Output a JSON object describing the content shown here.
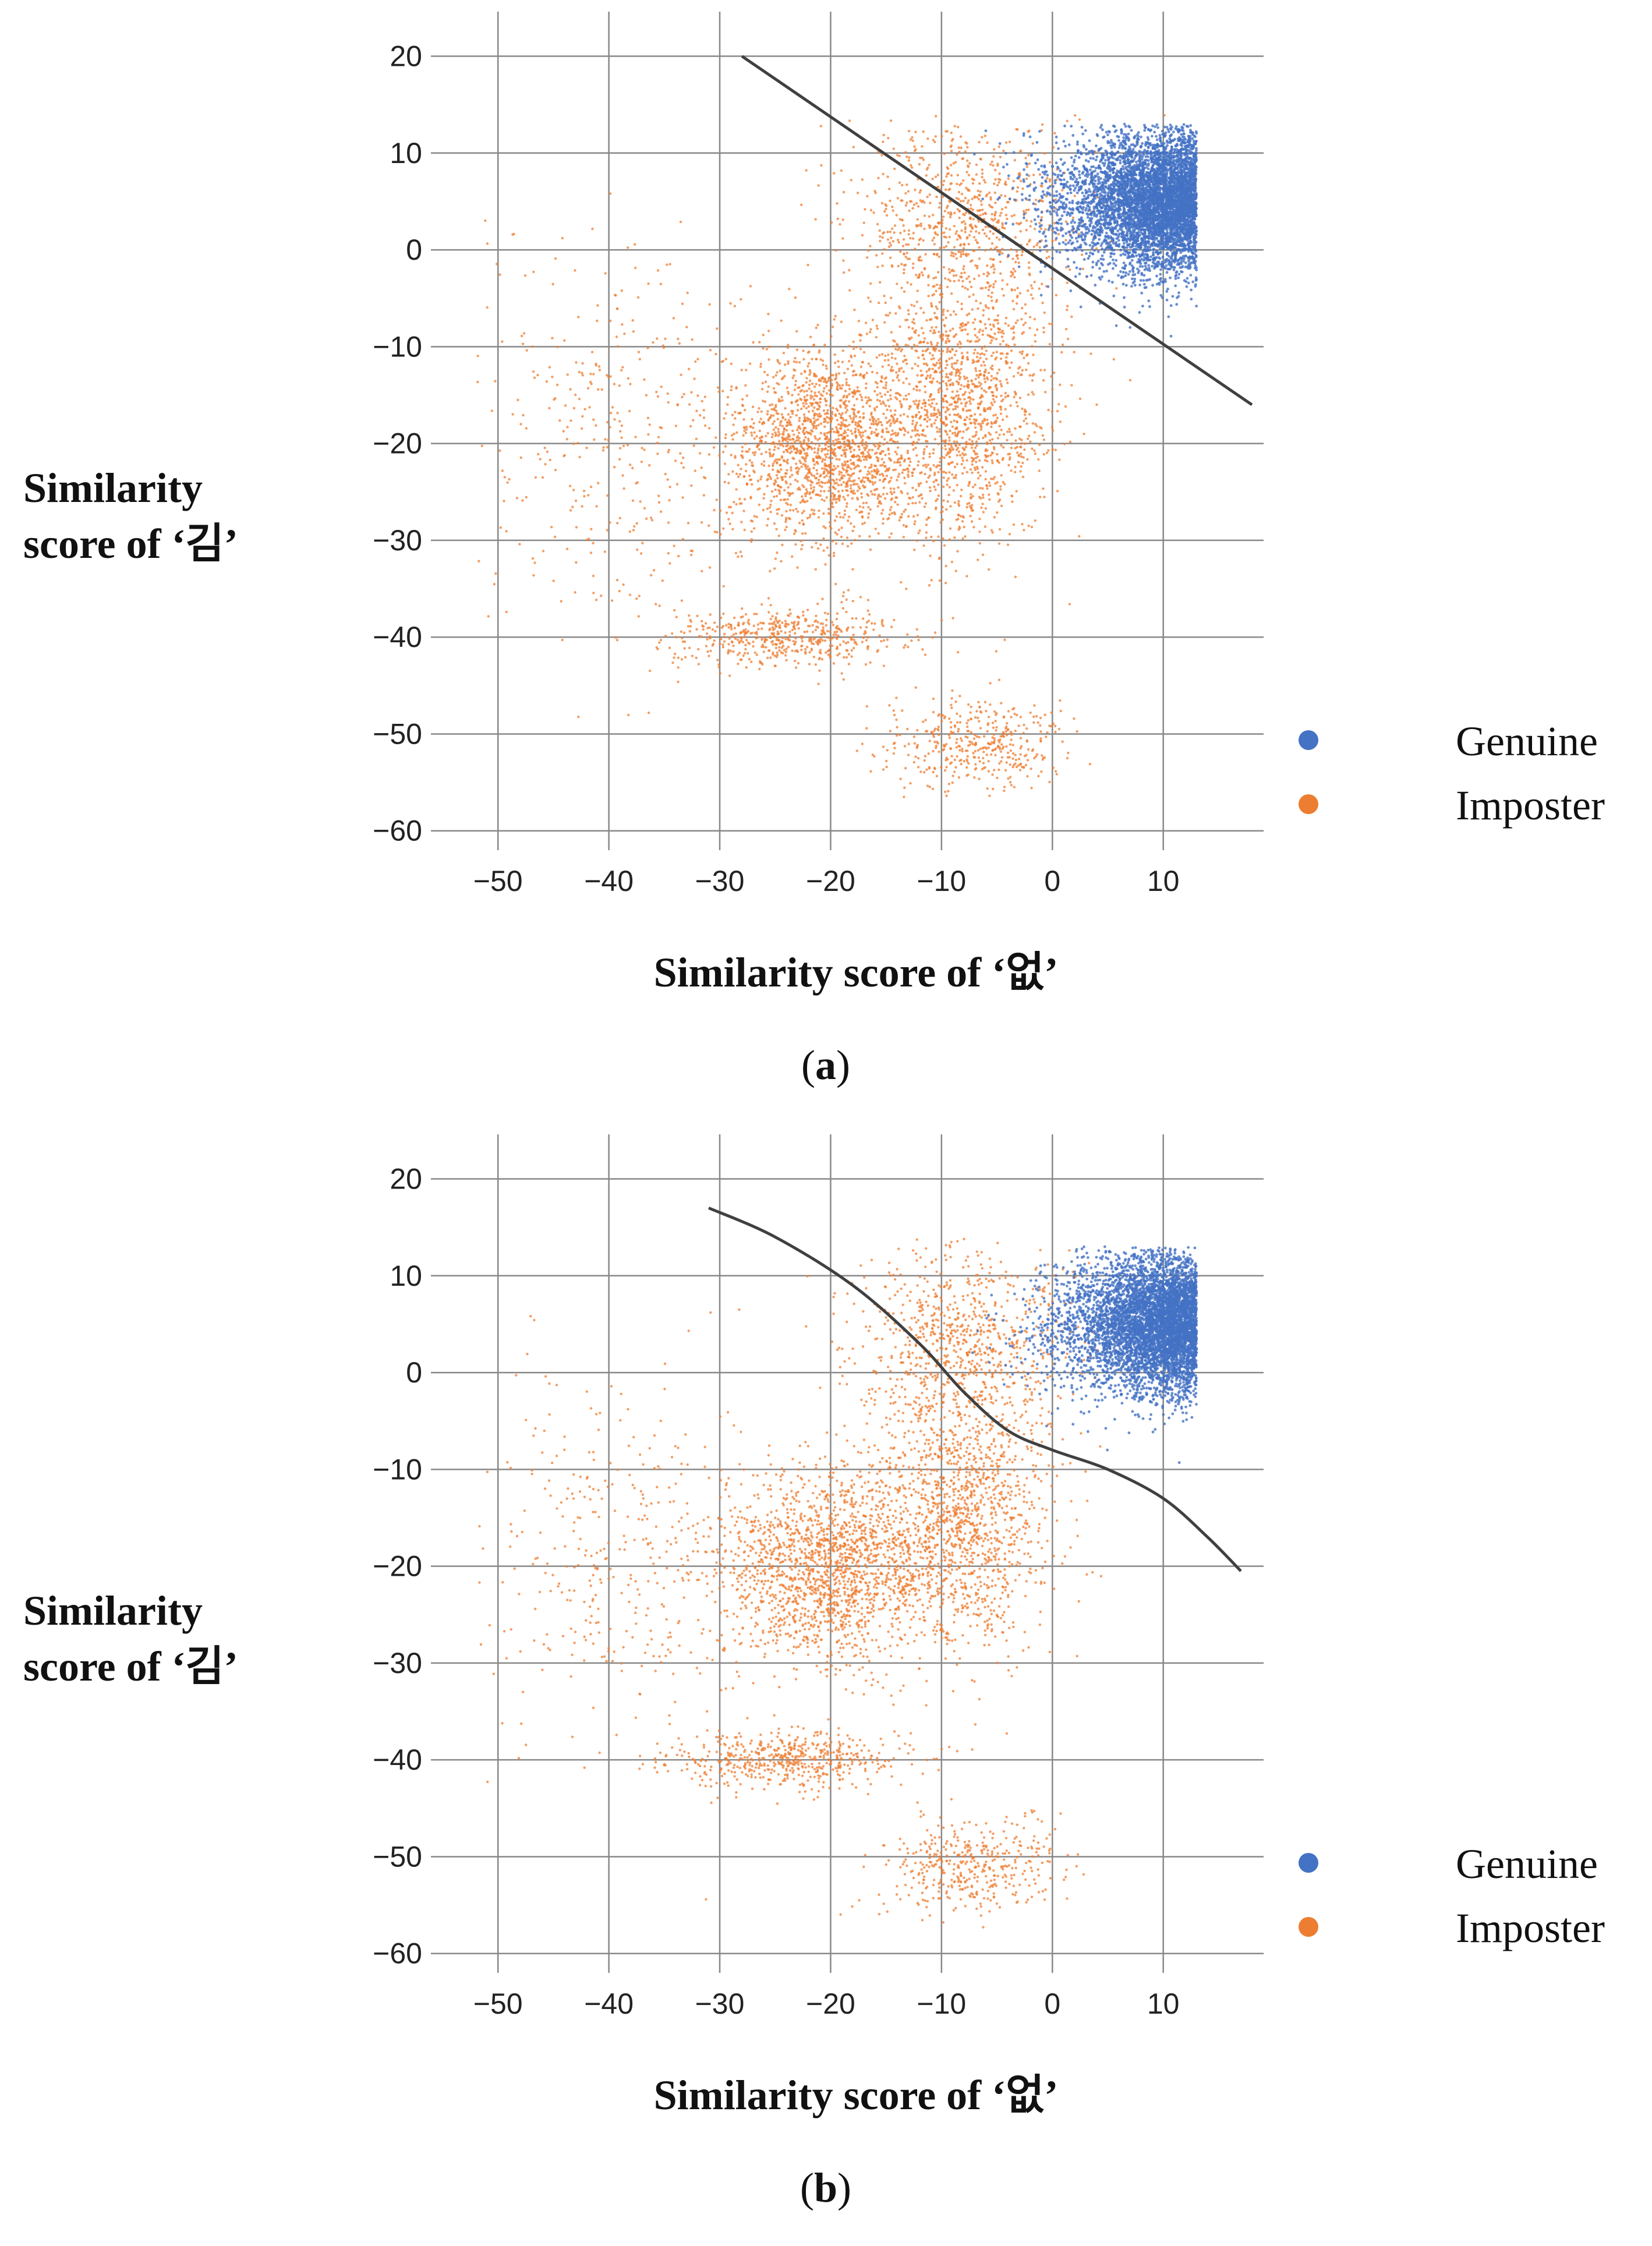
{
  "chart_data": [
    {
      "type": "scatter",
      "panel": "(a)",
      "caption_letter": "a",
      "xlabel": "Similarity score of ‘없’",
      "ylabel": [
        "Similarity",
        "score of ‘김’"
      ],
      "xlim": [
        -55,
        18
      ],
      "ylim": [
        -62,
        24
      ],
      "xticks": [
        -50,
        -40,
        -30,
        -20,
        -10,
        0,
        10
      ],
      "yticks": [
        20,
        10,
        0,
        -10,
        -20,
        -30,
        -40,
        -50,
        -60
      ],
      "xtick_labels": [
        "−50",
        "−40",
        "−30",
        "−20",
        "−10",
        "0",
        "10"
      ],
      "ytick_labels": [
        "20",
        "10",
        "0",
        "−10",
        "−20",
        "−30",
        "−40",
        "−50",
        "−60"
      ],
      "grid": true,
      "legend": "right",
      "series": [
        {
          "name": "Genuine",
          "color": "#4472C4",
          "distribution": {
            "x_center": 4,
            "x_spread": 5.5,
            "x_min": -12,
            "x_max": 13,
            "y_center": 5,
            "y_spread": 3.5,
            "y_min": -10,
            "y_max": 13
          }
        },
        {
          "name": "Imposter",
          "color": "#ED7D31",
          "clusters": [
            {
              "x": -20,
              "y": -20,
              "sx": 5,
              "sy": 5,
              "weight": 0.35
            },
            {
              "x": -8,
              "y": -15,
              "sx": 4,
              "sy": 7,
              "weight": 0.25
            },
            {
              "x": -8,
              "y": 3,
              "sx": 5,
              "sy": 5,
              "weight": 0.15
            },
            {
              "x": -24,
              "y": -40,
              "sx": 5,
              "sy": 1.5,
              "weight": 0.1
            },
            {
              "x": -7,
              "y": -51,
              "sx": 4,
              "sy": 2.5,
              "weight": 0.08
            },
            {
              "x": -40,
              "y": -20,
              "sx": 6,
              "sy": 10,
              "weight": 0.07
            }
          ]
        },
        {
          "name": "decision boundary",
          "kind": "line",
          "color": "#404040",
          "points": [
            [
              -28,
              20
            ],
            [
              18,
              -16
            ]
          ]
        }
      ]
    },
    {
      "type": "scatter",
      "panel": "(b)",
      "caption_letter": "b",
      "xlabel": "Similarity score of ‘없’",
      "ylabel": [
        "Similarity",
        "score of ‘김’"
      ],
      "xlim": [
        -55,
        18
      ],
      "ylim": [
        -62,
        24
      ],
      "xticks": [
        -50,
        -40,
        -30,
        -20,
        -10,
        0,
        10
      ],
      "yticks": [
        20,
        10,
        0,
        -10,
        -20,
        -30,
        -40,
        -50,
        -60
      ],
      "xtick_labels": [
        "−50",
        "−40",
        "−30",
        "−20",
        "−10",
        "0",
        "10"
      ],
      "ytick_labels": [
        "20",
        "10",
        "0",
        "−10",
        "−20",
        "−30",
        "−40",
        "−50",
        "−60"
      ],
      "grid": true,
      "legend": "right",
      "series": [
        {
          "name": "Genuine",
          "color": "#4472C4",
          "distribution": {
            "x_center": 4,
            "x_spread": 5.5,
            "x_min": -12,
            "x_max": 13,
            "y_center": 5,
            "y_spread": 3.5,
            "y_min": -10,
            "y_max": 13
          }
        },
        {
          "name": "Imposter",
          "color": "#ED7D31",
          "clusters": [
            {
              "x": -20,
              "y": -20,
              "sx": 5,
              "sy": 5,
              "weight": 0.35
            },
            {
              "x": -8,
              "y": -15,
              "sx": 4,
              "sy": 7,
              "weight": 0.25
            },
            {
              "x": -8,
              "y": 3,
              "sx": 5,
              "sy": 5,
              "weight": 0.15
            },
            {
              "x": -24,
              "y": -40,
              "sx": 5,
              "sy": 1.5,
              "weight": 0.1
            },
            {
              "x": -7,
              "y": -51,
              "sx": 4,
              "sy": 2.5,
              "weight": 0.08
            },
            {
              "x": -40,
              "y": -20,
              "sx": 6,
              "sy": 10,
              "weight": 0.07
            }
          ]
        },
        {
          "name": "decision boundary",
          "kind": "curve",
          "color": "#404040",
          "points": [
            [
              -31,
              17
            ],
            [
              -25,
              14
            ],
            [
              -18,
              9
            ],
            [
              -12,
              3
            ],
            [
              -8,
              -2
            ],
            [
              -4,
              -6
            ],
            [
              0,
              -8
            ],
            [
              5,
              -10
            ],
            [
              10,
              -13
            ],
            [
              14,
              -17
            ],
            [
              17,
              -20.5
            ]
          ]
        }
      ]
    }
  ],
  "legend": {
    "genuine": "Genuine",
    "imposter": "Imposter"
  },
  "captions": {
    "a": "a",
    "b": "b"
  }
}
